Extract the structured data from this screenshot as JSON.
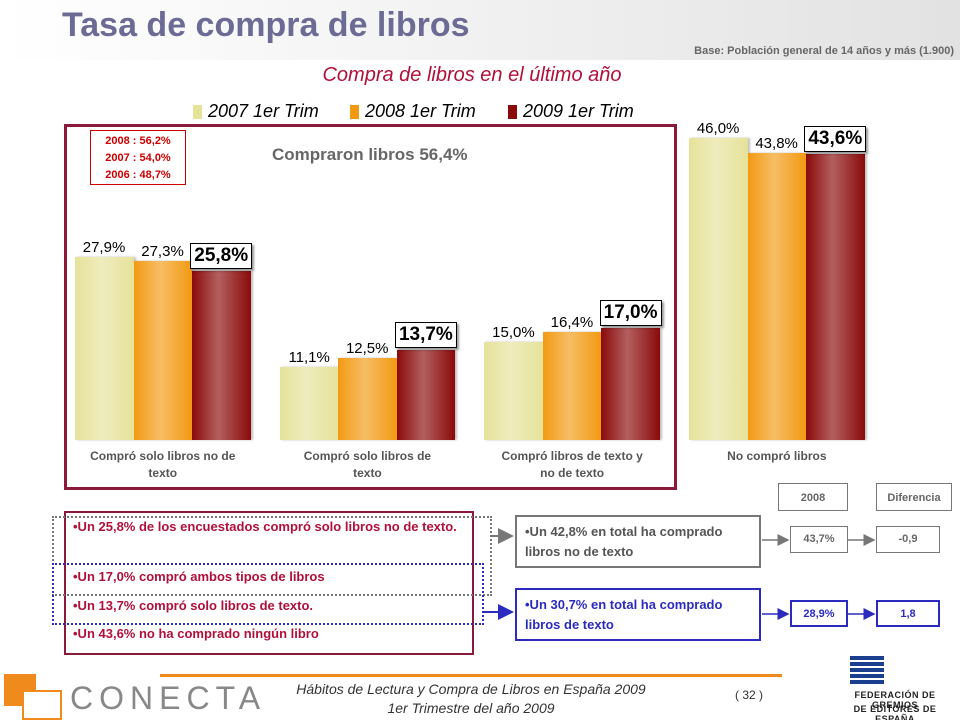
{
  "header": {
    "title": "Tasa de compra de libros",
    "base": "Base: Población general de 14 años y más (1.900)"
  },
  "chart_data": {
    "type": "bar",
    "title": "Compra de libros en el último año",
    "categories": [
      "Compró solo libros no de texto",
      "Compró solo libros de texto",
      "Compró libros de texto y no de texto",
      "No compró libros"
    ],
    "series": [
      {
        "name": "2007 1er Trim",
        "color": "#e6e29a",
        "values": [
          27.9,
          11.1,
          15.0,
          46.0
        ],
        "value_labels": [
          "27,9%",
          "11,1%",
          "15,0%",
          "46,0%"
        ]
      },
      {
        "name": "2008 1er Trim",
        "color": "#f29a12",
        "values": [
          27.3,
          12.5,
          16.4,
          43.8
        ],
        "value_labels": [
          "27,3%",
          "12,5%",
          "16,4%",
          "43,8%"
        ]
      },
      {
        "name": "2009 1er Trim",
        "color": "#8a0a0a",
        "values": [
          25.8,
          13.7,
          17.0,
          43.6
        ],
        "value_labels": [
          "25,8%",
          "13,7%",
          "17,0%",
          "43,6%"
        ]
      }
    ],
    "annotation": "Compraron libros 56,4%",
    "notes": [
      "2008 : 56,2%",
      "2007 : 54,0%",
      "2006 : 48,7%"
    ]
  },
  "bullets": [
    "•Un 25,8% de los encuestados compró solo libros no de texto.",
    "•Un 17,0% compró ambos tipos de libros",
    "•Un 13,7% compró solo libros de texto.",
    "•Un 43,6% no ha comprado ningún libro"
  ],
  "summary_table": {
    "headers": [
      "2008",
      "Diferencia"
    ],
    "rows": [
      {
        "text": "•Un 42,8% en total ha comprado libros no de texto",
        "cells": [
          "43,7%",
          "-0,9"
        ]
      },
      {
        "text": "•Un 30,7% en total ha comprado libros de texto",
        "cells": [
          "28,9%",
          "1,8"
        ]
      }
    ]
  },
  "footer": {
    "lines": [
      "Hábitos de Lectura y Compra de Libros en España 2009",
      "1er Trimestre del año 2009"
    ],
    "page": "( 32 )",
    "logo": "CONECTA",
    "org": [
      "FEDERACIÓN DE GREMIOS",
      "DE EDITORES DE ESPAÑA"
    ]
  }
}
